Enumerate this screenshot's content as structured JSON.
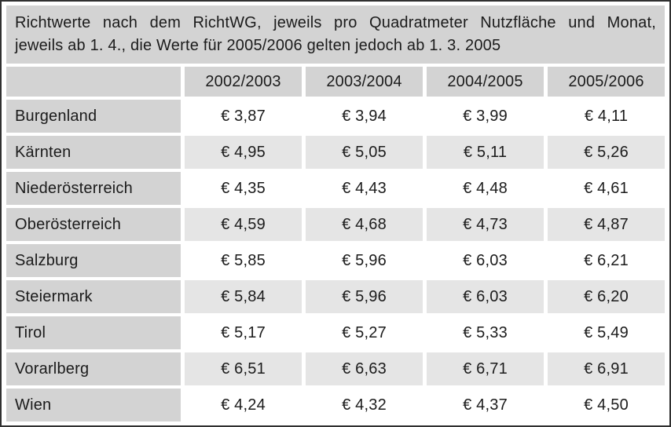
{
  "caption": {
    "line1": "Richtwerte nach dem RichtWG, jeweils pro Quadratmeter Nutzfläche und Monat,",
    "line2": "jeweils ab 1. 4., die Werte für 2005/2006 gelten jedoch ab 1. 3. 2005"
  },
  "table": {
    "columns": [
      "2002/2003",
      "2003/2004",
      "2004/2005",
      "2005/2006"
    ],
    "rows": [
      {
        "label": "Burgenland",
        "values": [
          "€ 3,87",
          "€ 3,94",
          "€ 3,99",
          "€ 4,11"
        ]
      },
      {
        "label": "Kärnten",
        "values": [
          "€ 4,95",
          "€ 5,05",
          "€ 5,11",
          "€ 5,26"
        ]
      },
      {
        "label": "Niederösterreich",
        "values": [
          "€ 4,35",
          "€ 4,43",
          "€ 4,48",
          "€ 4,61"
        ]
      },
      {
        "label": "Oberösterreich",
        "values": [
          "€ 4,59",
          "€ 4,68",
          "€ 4,73",
          "€ 4,87"
        ]
      },
      {
        "label": "Salzburg",
        "values": [
          "€ 5,85",
          "€ 5,96",
          "€ 6,03",
          "€ 6,21"
        ]
      },
      {
        "label": "Steiermark",
        "values": [
          "€ 5,84",
          "€ 5,96",
          "€ 6,03",
          "€ 6,20"
        ]
      },
      {
        "label": "Tirol",
        "values": [
          "€ 5,17",
          "€ 5,27",
          "€ 5,33",
          "€ 5,49"
        ]
      },
      {
        "label": "Vorarlberg",
        "values": [
          "€ 6,51",
          "€ 6,63",
          "€ 6,71",
          "€ 6,91"
        ]
      },
      {
        "label": "Wien",
        "values": [
          "€ 4,24",
          "€ 4,32",
          "€ 4,37",
          "€ 4,50"
        ]
      }
    ]
  },
  "colors": {
    "header_fill": "#d3d3d3",
    "alt_row_fill": "#e5e5e5",
    "row_fill": "#ffffff",
    "border": "#303030",
    "text": "#1b1b1b"
  }
}
